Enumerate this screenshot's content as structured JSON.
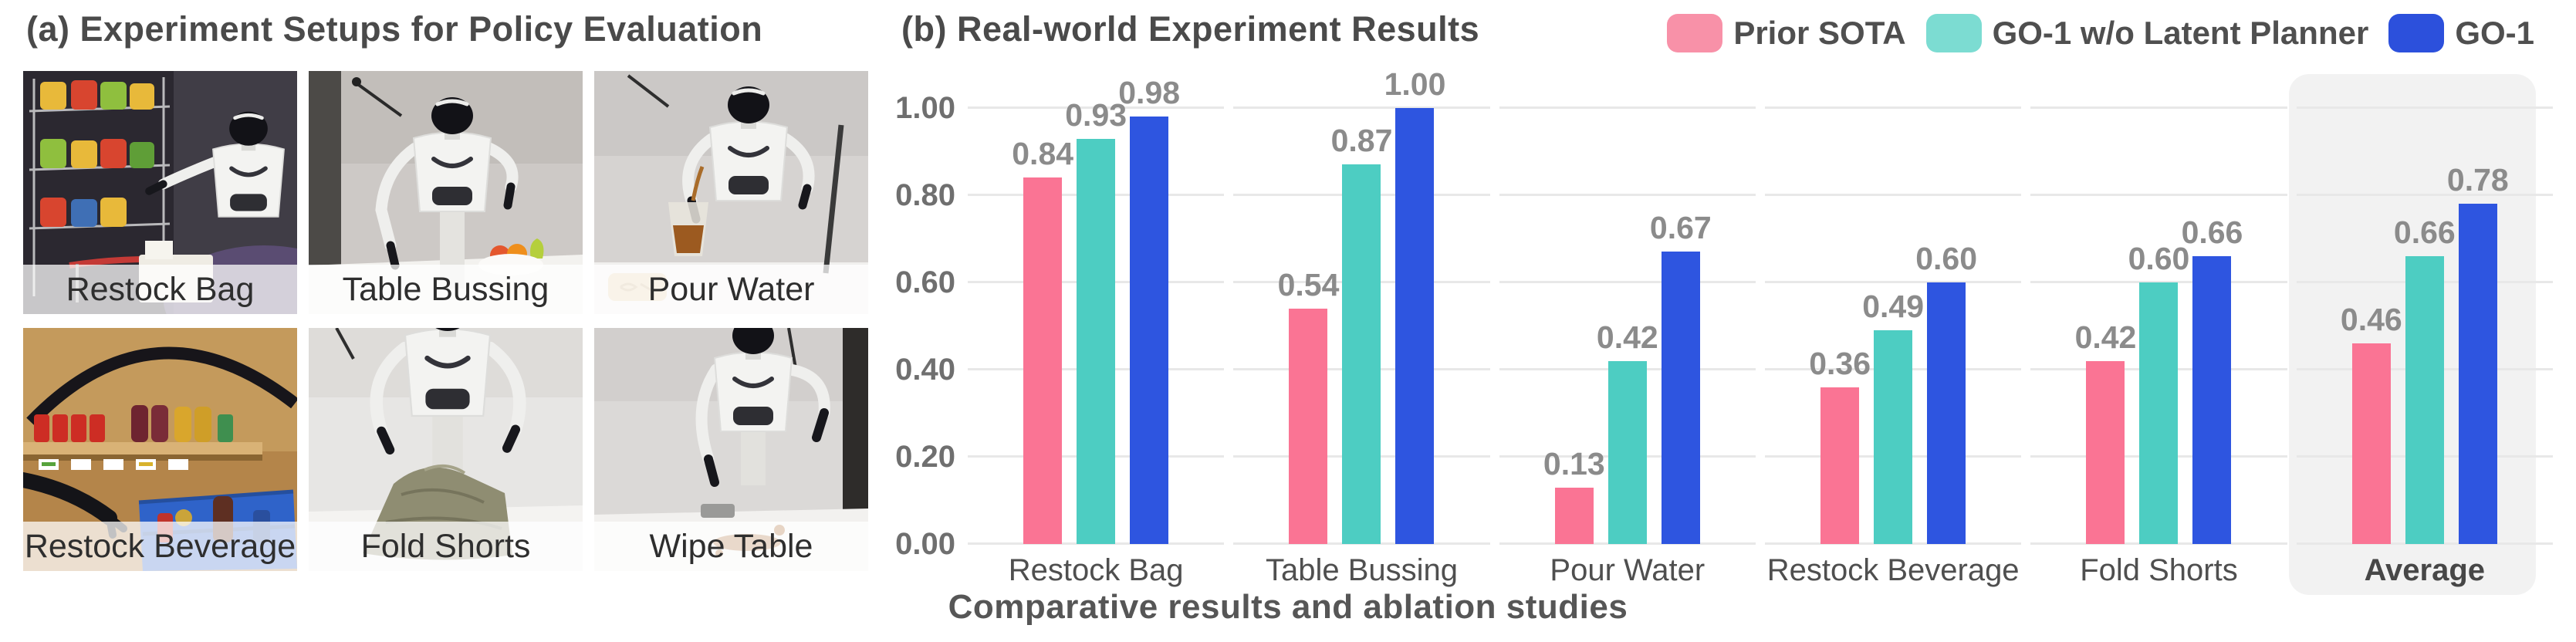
{
  "figure": {
    "panel_a": {
      "title": "(a) Experiment Setups for Policy Evaluation",
      "photos": [
        {
          "label": "Restock Bag"
        },
        {
          "label": "Table Bussing"
        },
        {
          "label": "Pour Water"
        },
        {
          "label": "Restock Beverage"
        },
        {
          "label": "Fold Shorts"
        },
        {
          "label": "Wipe Table"
        }
      ]
    },
    "panel_b": {
      "title": "(b) Real-world Experiment Results"
    },
    "caption": "Comparative results and ablation studies"
  },
  "chart_data": {
    "type": "bar",
    "title": "(b) Real-world Experiment Results",
    "categories": [
      "Restock Bag",
      "Table Bussing",
      "Pour Water",
      "Restock Beverage",
      "Fold Shorts",
      "Average"
    ],
    "series": [
      {
        "name": "Prior SOTA",
        "color": "#fa7494",
        "legend_swatch_color": "#f891a8",
        "values": [
          0.84,
          0.54,
          0.13,
          0.36,
          0.42,
          0.46
        ]
      },
      {
        "name": "GO-1 w/o Latent Planner",
        "color": "#4dcdc2",
        "legend_swatch_color": "#7cdcd2",
        "values": [
          0.93,
          0.87,
          0.42,
          0.49,
          0.6,
          0.66
        ]
      },
      {
        "name": "GO-1",
        "color": "#2e55e0",
        "legend_swatch_color": "#2c50dc",
        "values": [
          0.98,
          1.0,
          0.67,
          0.6,
          0.66,
          0.78
        ]
      }
    ],
    "xlabel": "",
    "ylabel": "",
    "ylim": [
      0,
      1.0
    ],
    "yticks": [
      "0.00",
      "0.20",
      "0.40",
      "0.60",
      "0.80",
      "1.00"
    ],
    "grid": true,
    "legend_position": "top-right",
    "highlighted_category": "Average",
    "gridline_color": "#e8e8e8",
    "highlight_color": "#f2f2f2",
    "value_label_color": "#8b8b8b"
  }
}
